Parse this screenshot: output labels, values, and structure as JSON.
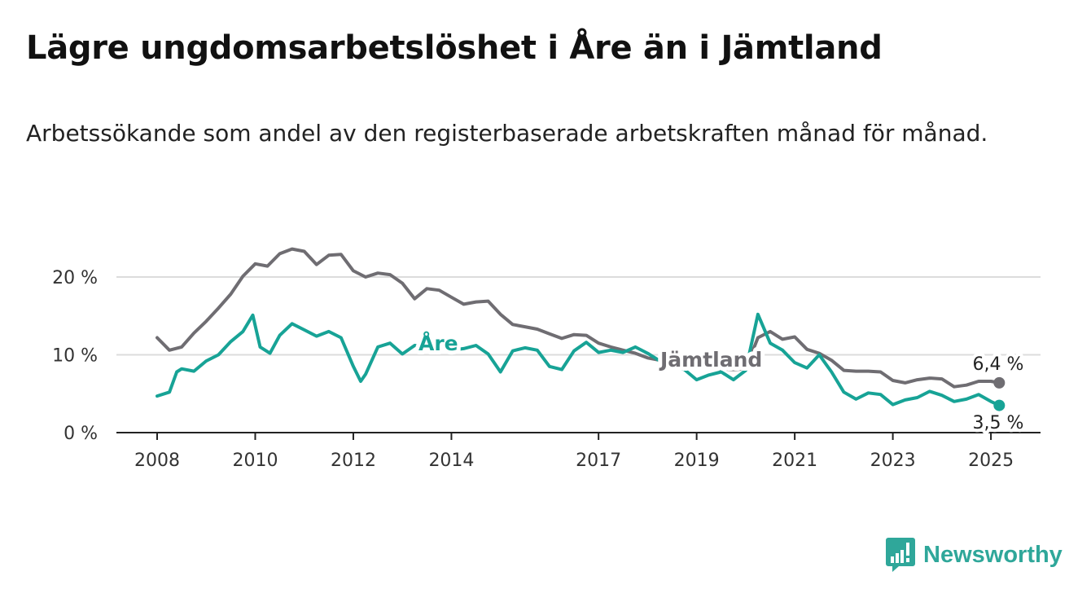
{
  "title": "Lägre ungdomsarbetslöshet i Åre än i Jämtland",
  "subtitle": "Arbetssökande som andel av den registerbaserade arbetskraften månad för månad.",
  "brand": {
    "name": "Newsworthy",
    "logo_icon": "bar-chart-exclamation-icon",
    "color": "#2fa79a"
  },
  "chart_data": {
    "type": "line",
    "title": "Lägre ungdomsarbetslöshet i Åre än i Jämtland",
    "subtitle": "Arbetssökande som andel av den registerbaserade arbetskraften månad för månad.",
    "x_ticks": [
      "2008",
      "2010",
      "2012",
      "2014",
      "2017",
      "2019",
      "2021",
      "2023",
      "2025"
    ],
    "y_ticks": [
      "0 %",
      "10 %",
      "20 %"
    ],
    "ylim": [
      0,
      24.5
    ],
    "xlim": [
      2007.55,
      2026.0
    ],
    "grid": "horizontal",
    "end_labels": [
      "6,4 %",
      "3,5 %"
    ],
    "series": [
      {
        "name": "Jämtland",
        "color": "#6f6d72",
        "x": [
          2008.0,
          2008.25,
          2008.5,
          2008.75,
          2009.0,
          2009.25,
          2009.5,
          2009.75,
          2010.0,
          2010.25,
          2010.5,
          2010.75,
          2011.0,
          2011.25,
          2011.5,
          2011.75,
          2012.0,
          2012.25,
          2012.5,
          2012.75,
          2013.0,
          2013.25,
          2013.5,
          2013.75,
          2014.0,
          2014.25,
          2014.5,
          2014.75,
          2015.0,
          2015.25,
          2015.5,
          2015.75,
          2016.0,
          2016.25,
          2016.5,
          2016.75,
          2017.0,
          2017.25,
          2017.5,
          2017.75,
          2018.0,
          2018.25,
          2018.5,
          2018.75,
          2019.0,
          2019.25,
          2019.5,
          2019.75,
          2020.0,
          2020.25,
          2020.5,
          2020.75,
          2021.0,
          2021.25,
          2021.5,
          2021.75,
          2022.0,
          2022.25,
          2022.5,
          2022.75,
          2023.0,
          2023.25,
          2023.5,
          2023.75,
          2024.0,
          2024.25,
          2024.5,
          2024.75,
          2025.0,
          2025.17
        ],
        "values": [
          12.2,
          10.6,
          11.0,
          12.8,
          14.3,
          16.0,
          17.8,
          20.1,
          21.7,
          21.4,
          23.0,
          23.6,
          23.3,
          21.6,
          22.8,
          22.9,
          20.8,
          20.0,
          20.5,
          20.3,
          19.2,
          17.2,
          18.5,
          18.3,
          17.4,
          16.5,
          16.8,
          16.9,
          15.2,
          13.9,
          13.6,
          13.3,
          12.7,
          12.1,
          12.6,
          12.5,
          11.5,
          11.0,
          10.6,
          10.2,
          9.6,
          9.3,
          9.0,
          8.7,
          8.4,
          8.3,
          8.2,
          8.1,
          8.2,
          12.2,
          13.0,
          12.0,
          12.3,
          10.7,
          10.2,
          9.3,
          8.0,
          7.9,
          7.9,
          7.8,
          6.7,
          6.4,
          6.8,
          7.0,
          6.9,
          5.9,
          6.1,
          6.6,
          6.6,
          6.4
        ]
      },
      {
        "name": "Åre",
        "color": "#17a396",
        "x": [
          2008.0,
          2008.25,
          2008.4,
          2008.5,
          2008.75,
          2009.0,
          2009.25,
          2009.5,
          2009.75,
          2009.95,
          2010.1,
          2010.3,
          2010.5,
          2010.75,
          2011.0,
          2011.25,
          2011.5,
          2011.75,
          2012.0,
          2012.15,
          2012.25,
          2012.5,
          2012.75,
          2013.0,
          2013.25,
          2013.5,
          2013.75,
          2014.0,
          2014.25,
          2014.5,
          2014.75,
          2015.0,
          2015.25,
          2015.5,
          2015.75,
          2016.0,
          2016.25,
          2016.5,
          2016.75,
          2017.0,
          2017.25,
          2017.5,
          2017.75,
          2018.0,
          2018.25,
          2018.5,
          2018.75,
          2019.0,
          2019.25,
          2019.5,
          2019.75,
          2020.0,
          2020.25,
          2020.5,
          2020.75,
          2021.0,
          2021.25,
          2021.5,
          2021.75,
          2022.0,
          2022.25,
          2022.5,
          2022.75,
          2023.0,
          2023.25,
          2023.5,
          2023.75,
          2024.0,
          2024.25,
          2024.5,
          2024.75,
          2025.0,
          2025.17
        ],
        "values": [
          4.7,
          5.2,
          7.8,
          8.2,
          7.9,
          9.2,
          10.0,
          11.7,
          13.0,
          15.1,
          11.0,
          10.2,
          12.5,
          14.0,
          13.2,
          12.4,
          13.0,
          12.2,
          8.5,
          6.6,
          7.5,
          11.0,
          11.5,
          10.1,
          11.2,
          11.0,
          11.6,
          10.6,
          10.8,
          11.2,
          10.1,
          7.8,
          10.5,
          10.9,
          10.6,
          8.5,
          8.1,
          10.5,
          11.6,
          10.3,
          10.6,
          10.3,
          11.0,
          10.2,
          9.2,
          8.6,
          8.1,
          6.8,
          7.4,
          7.8,
          6.8,
          8.0,
          15.2,
          11.5,
          10.6,
          9.0,
          8.3,
          10.0,
          7.8,
          5.2,
          4.3,
          5.1,
          4.9,
          3.6,
          4.2,
          4.5,
          5.3,
          4.8,
          4.0,
          4.3,
          4.9,
          4.0,
          3.5
        ]
      }
    ]
  }
}
